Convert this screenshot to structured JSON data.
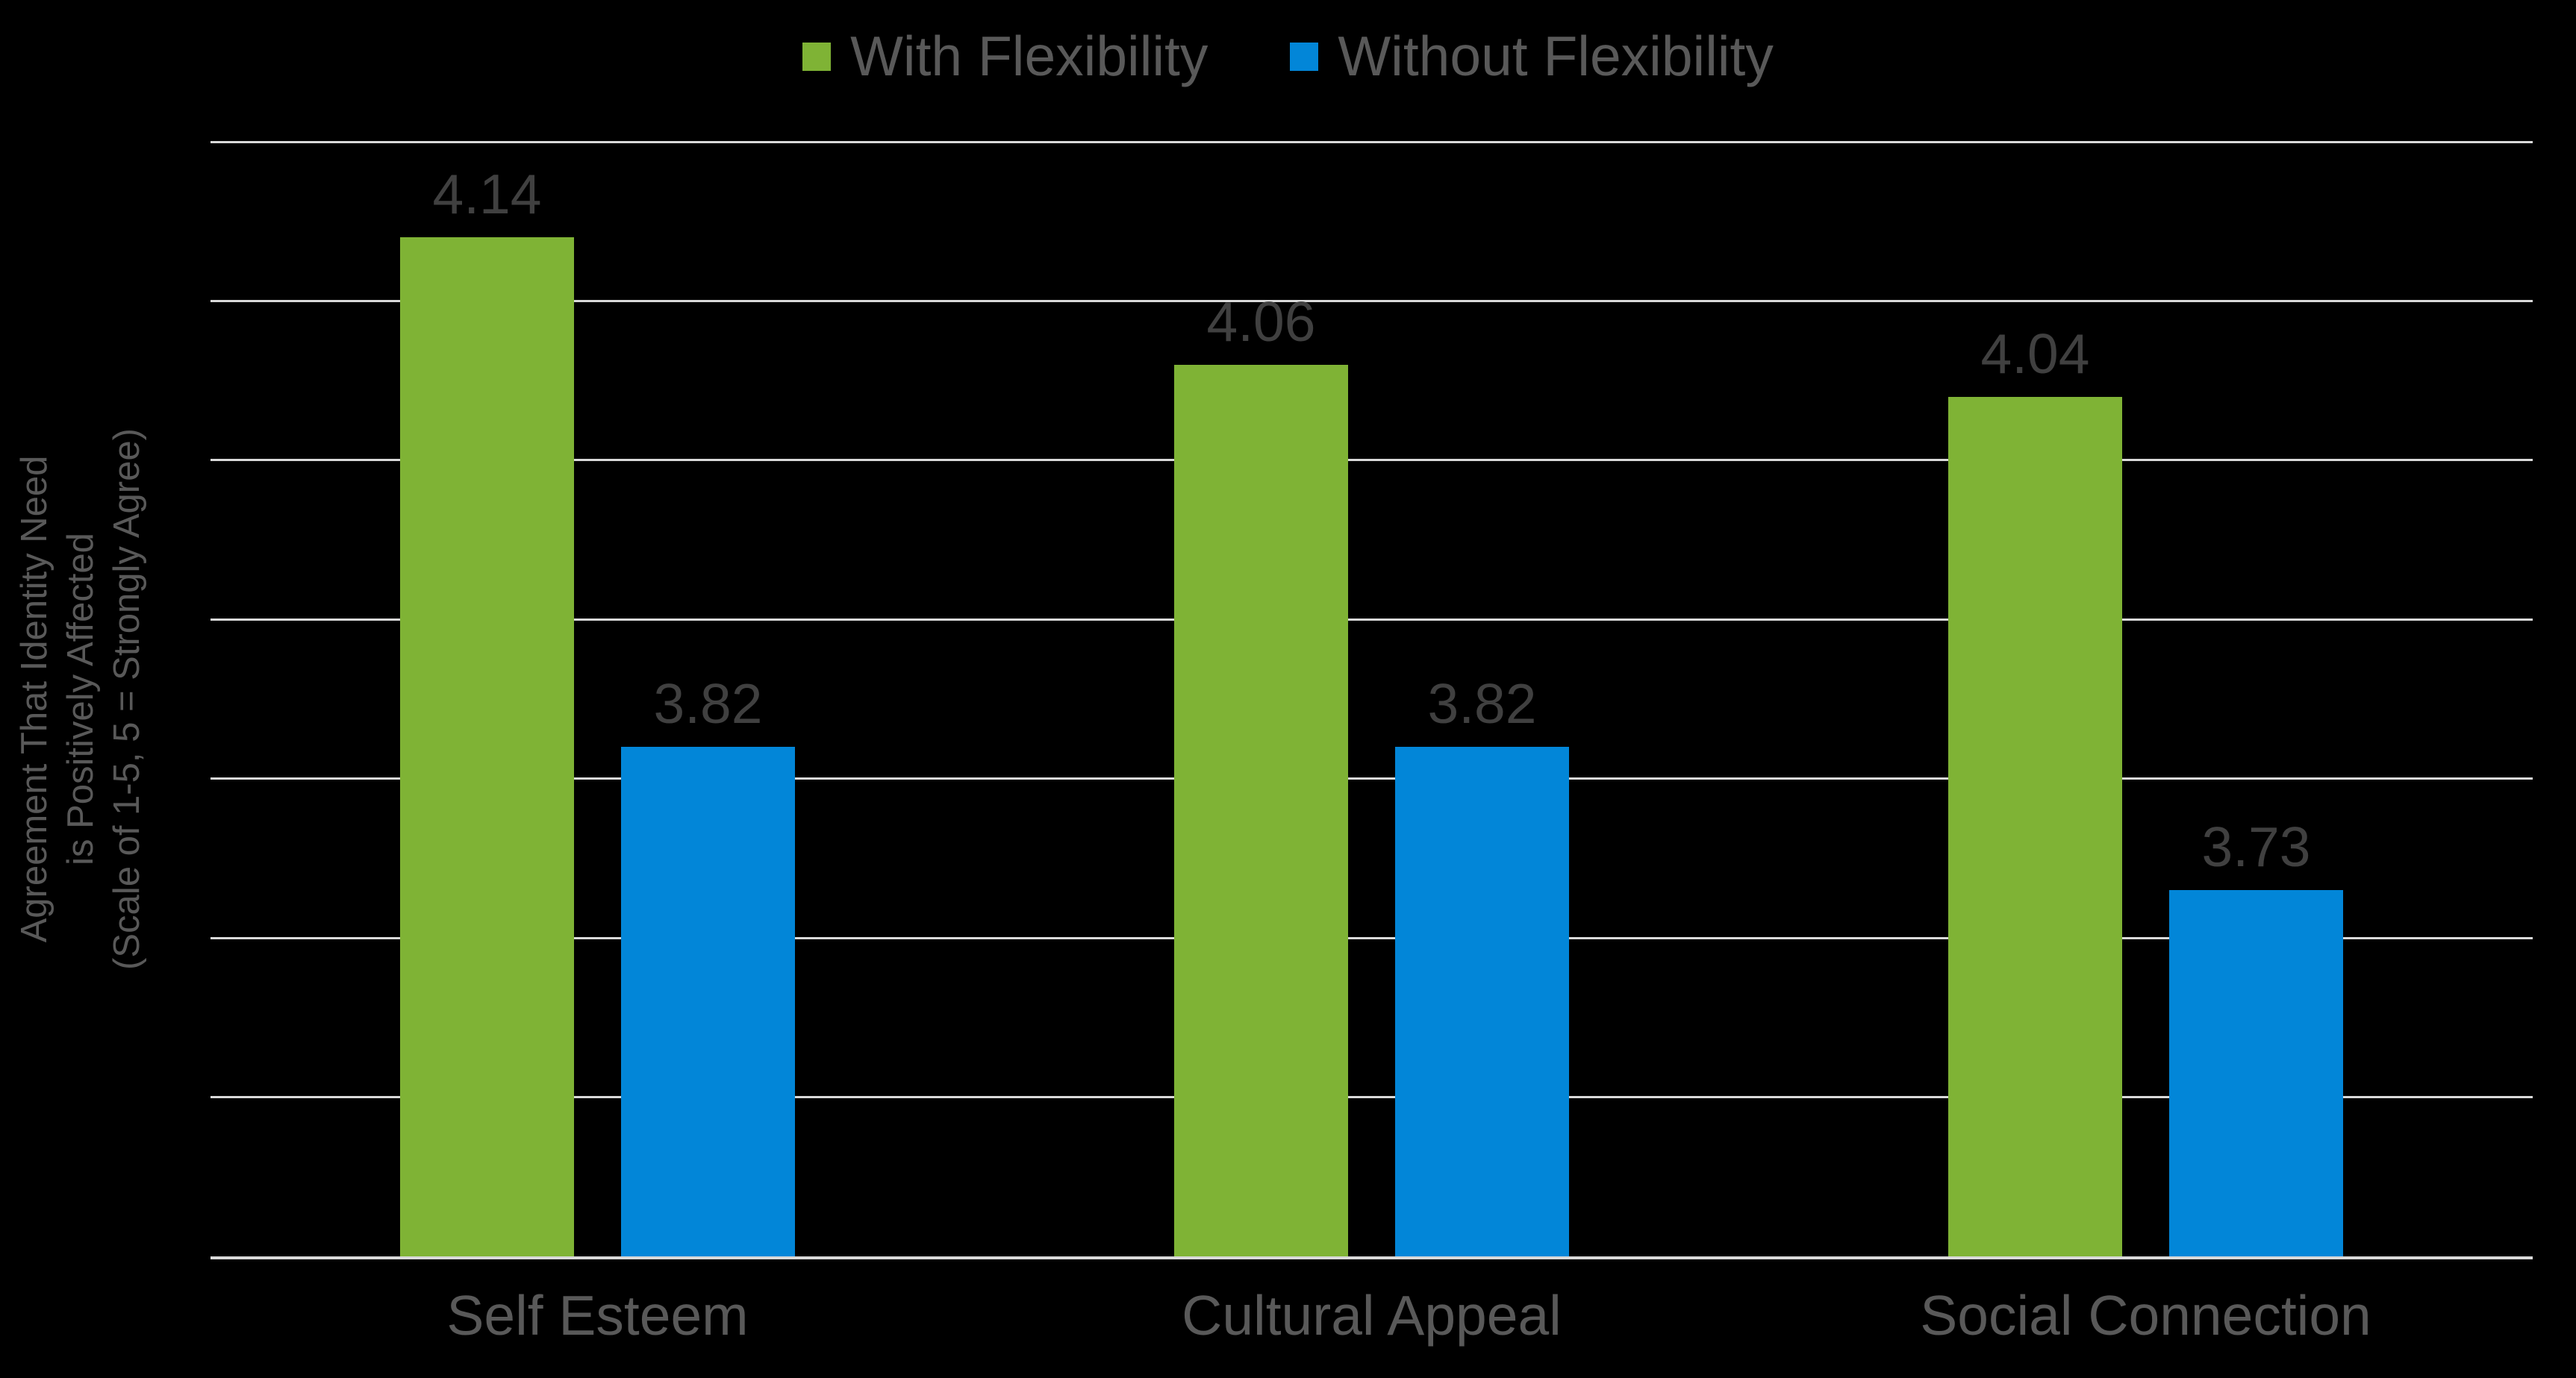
{
  "chart_data": {
    "type": "bar",
    "title": "",
    "categories": [
      "Self Esteem",
      "Cultural Appeal",
      "Social Connection"
    ],
    "series": [
      {
        "name": "With Flexibility",
        "color": "#7FB335",
        "values": [
          4.14,
          4.06,
          4.04
        ]
      },
      {
        "name": "Without Flexibility",
        "color": "#0286D8",
        "values": [
          3.82,
          3.82,
          3.73
        ]
      }
    ],
    "value_label_decimals": 2,
    "ylabel_lines": [
      "Agreement That Identity Need",
      "is Positively Affected",
      "(Scale of 1-5, 5 = Strongly Agree)"
    ],
    "xlabel": "",
    "ylim": [
      3.5,
      4.2
    ],
    "gridline_step": 0.1,
    "grid": true,
    "y_tick_labels_shown": false,
    "legend_position": "top-center"
  },
  "style": {
    "background": "#000000",
    "gridline_color": "#D9D9D9",
    "axis_line_color": "#D9D9D9",
    "value_label_color": "#404040",
    "category_label_color": "#595959",
    "legend_text_color": "#595959",
    "y_title_color": "#595959"
  }
}
